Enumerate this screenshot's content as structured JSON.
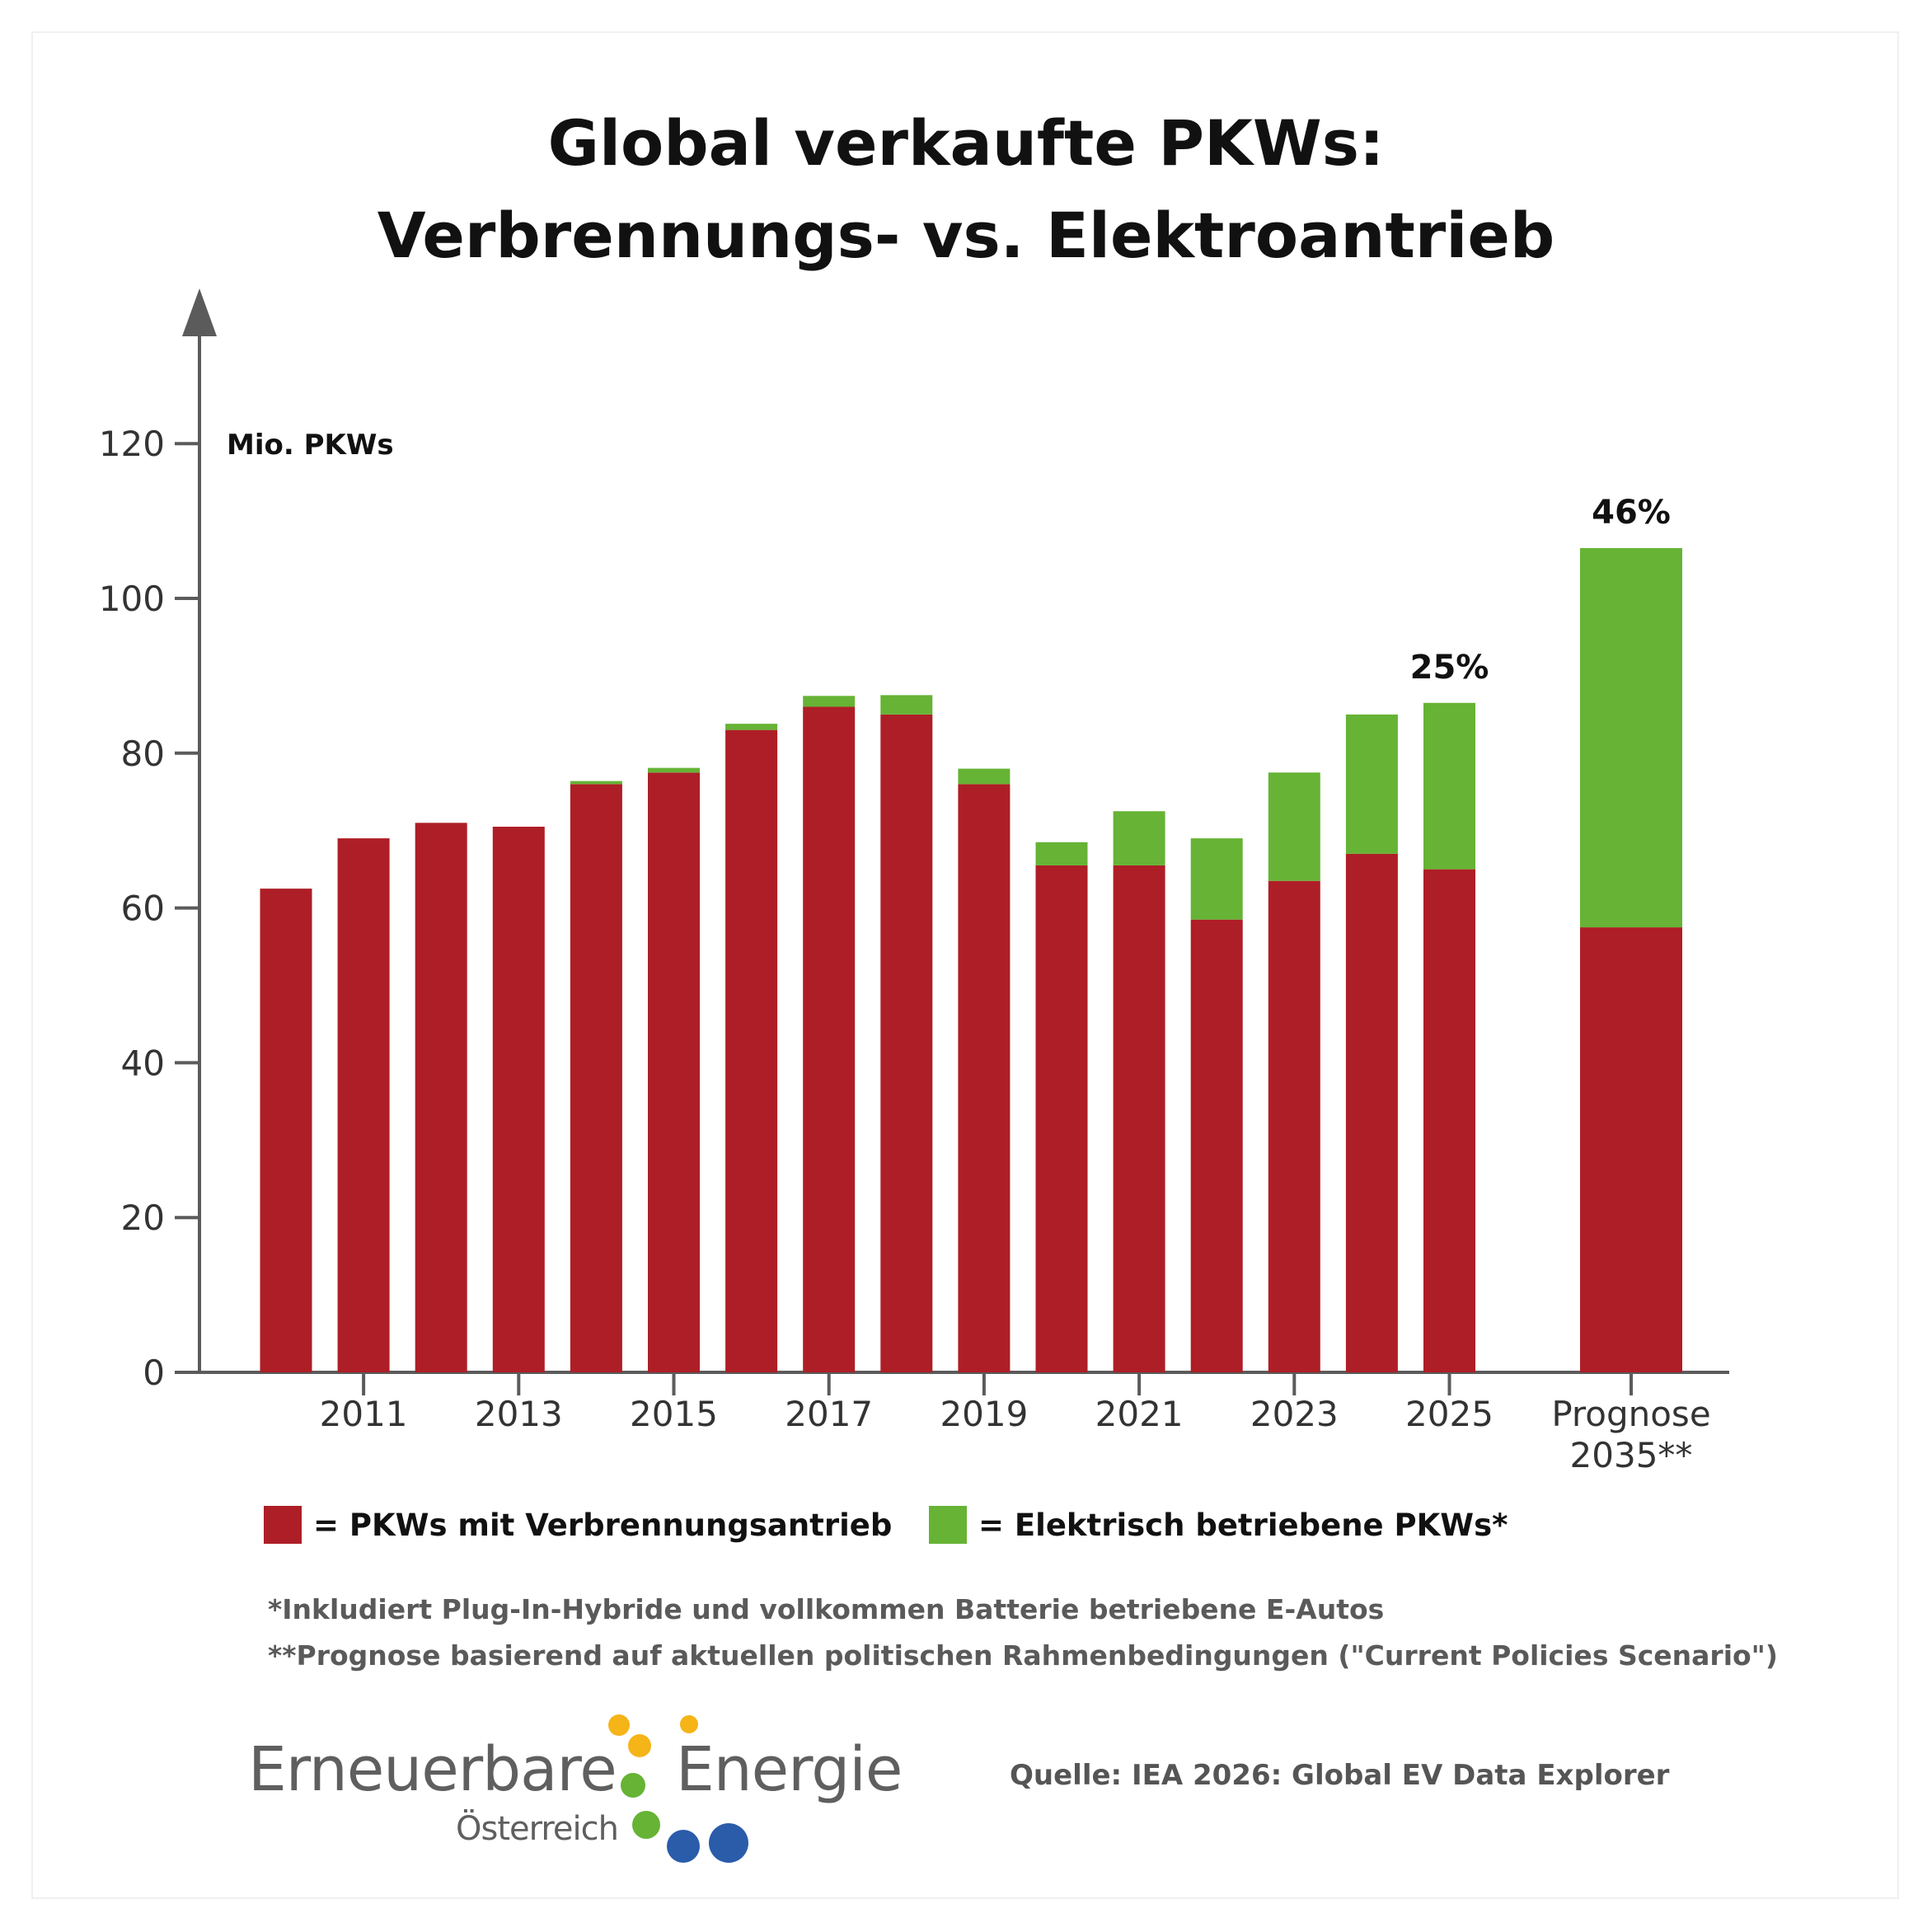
{
  "title": {
    "line1": "Global verkaufte PKWs:",
    "line2": "Verbrennungs- vs. Elektroantrieb"
  },
  "chart_data": {
    "type": "bar",
    "stacked": true,
    "ylabel": "Mio. PKWs",
    "ylim": [
      0,
      130
    ],
    "yticks": [
      0,
      20,
      40,
      60,
      80,
      100,
      120
    ],
    "categories": [
      "2010",
      "2011",
      "2012",
      "2013",
      "2014",
      "2015",
      "2016",
      "2017",
      "2018",
      "2019",
      "2020",
      "2021",
      "2022",
      "2023",
      "2024",
      "2025",
      "Prognose 2035**"
    ],
    "xtick_labels": [
      "",
      "2011",
      "",
      "2013",
      "",
      "2015",
      "",
      "2017",
      "",
      "2019",
      "",
      "2021",
      "",
      "2023",
      "",
      "2025",
      "Prognose\n2035**"
    ],
    "series": [
      {
        "name": "= PKWs mit Verbrennungsantrieb",
        "color": "#ae1e26",
        "values": [
          62.5,
          69,
          71,
          70.5,
          76,
          77.5,
          83,
          86,
          85,
          76,
          65.5,
          65.5,
          58.5,
          63.5,
          67,
          65,
          57.5
        ]
      },
      {
        "name": "= Elektrisch betriebene PKWs*",
        "color": "#66b335",
        "values": [
          0,
          0,
          0,
          0,
          0.4,
          0.6,
          0.8,
          1.4,
          2.5,
          2.0,
          3.0,
          7.0,
          10.5,
          14.0,
          18.0,
          21.5,
          49.0
        ]
      }
    ],
    "annotations": [
      {
        "category": "2025",
        "text": "25%"
      },
      {
        "category": "Prognose 2035**",
        "text": "46%"
      }
    ],
    "grid": false,
    "legend_position": "bottom"
  },
  "footnotes": [
    "*Inkludiert Plug-In-Hybride und vollkommen Batterie betriebene E-Autos",
    "**Prognose basierend auf aktuellen politischen Rahmenbedingungen (\"Current Policies Scenario\")"
  ],
  "source": "Quelle: IEA 2026: Global EV Data Explorer",
  "logo": {
    "word1": "Erneuerbare",
    "word2": "Energie",
    "word3": "Österreich",
    "dot_colors": [
      "#f5b417",
      "#66b335",
      "#2a5caa"
    ]
  }
}
